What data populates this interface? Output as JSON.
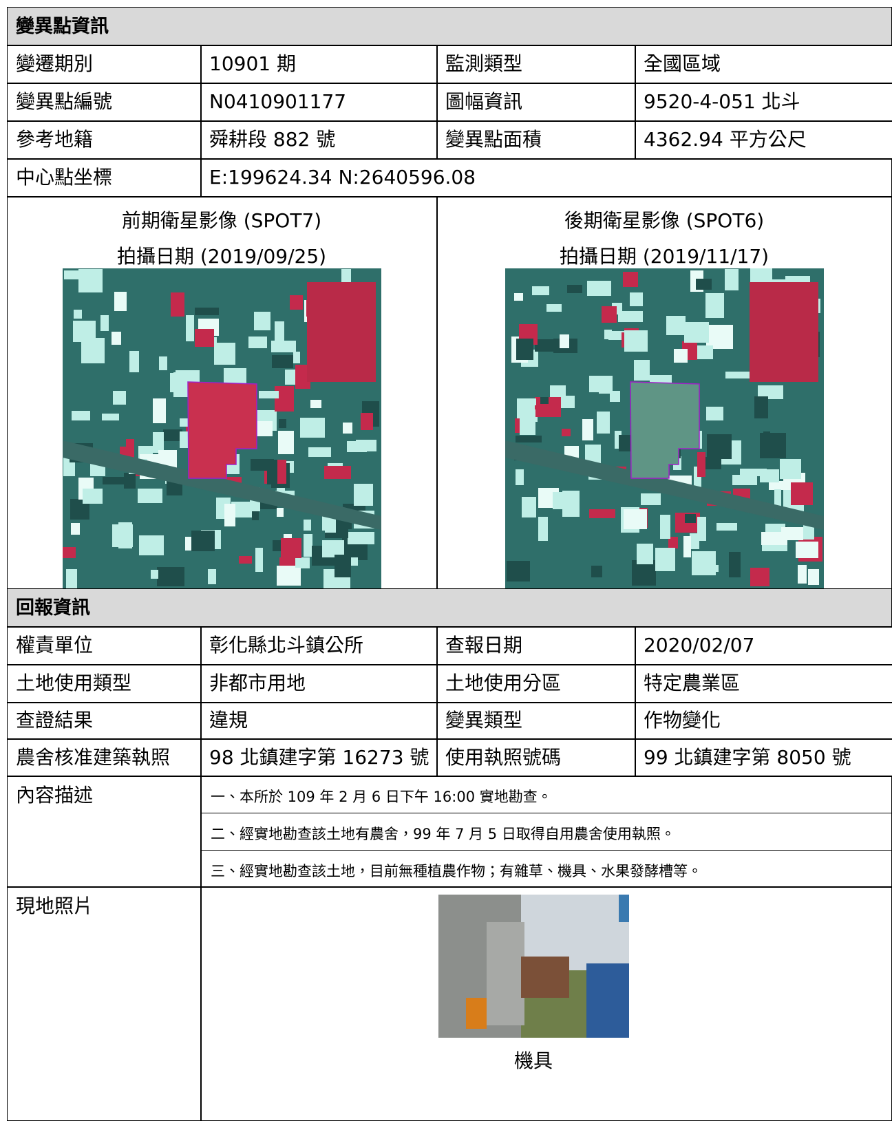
{
  "section1": {
    "title": "變異點資訊",
    "rows": [
      [
        "變遷期別",
        "10901 期",
        "監測類型",
        "全國區域"
      ],
      [
        "變異點編號",
        "N0410901177",
        "圖幅資訊",
        "9520-4-051  北斗"
      ],
      [
        "參考地籍",
        "舜耕段 882 號",
        "變異點面積",
        "4362.94 平方公尺"
      ]
    ],
    "center": {
      "label": "中心點坐標",
      "value": "E:199624.34    N:2640596.08"
    },
    "images": [
      {
        "caption": "前期衛星影像 (SPOT7)",
        "date": "拍攝日期 (2019/09/25)"
      },
      {
        "caption": "後期衛星影像 (SPOT6)",
        "date": "拍攝日期 (2019/11/17)"
      }
    ]
  },
  "section2": {
    "title": "回報資訊",
    "rows": [
      [
        "權責單位",
        "彰化縣北斗鎮公所",
        "查報日期",
        "2020/02/07"
      ],
      [
        "土地使用類型",
        "非都市用地",
        "土地使用分區",
        "特定農業區"
      ],
      [
        "查證結果",
        "違規",
        "變異類型",
        "作物變化"
      ],
      [
        "農舍核准建築執照",
        "98 北鎮建字第 16273 號",
        "使用執照號碼",
        "99 北鎮建字第 8050 號"
      ]
    ],
    "description": {
      "label": "內容描述",
      "lines": [
        "一、本所於 109 年 2 月 6 日下午 16:00 實地勘查。",
        "二、經實地勘查該土地有農舍，99 年 7 月 5 日取得自用農舍使用執照。",
        "三、經實地勘查該土地，目前無種植農作物；有雜草、機具、水果發酵槽等。"
      ]
    },
    "photo": {
      "label": "現地照片",
      "caption": "機具"
    }
  }
}
